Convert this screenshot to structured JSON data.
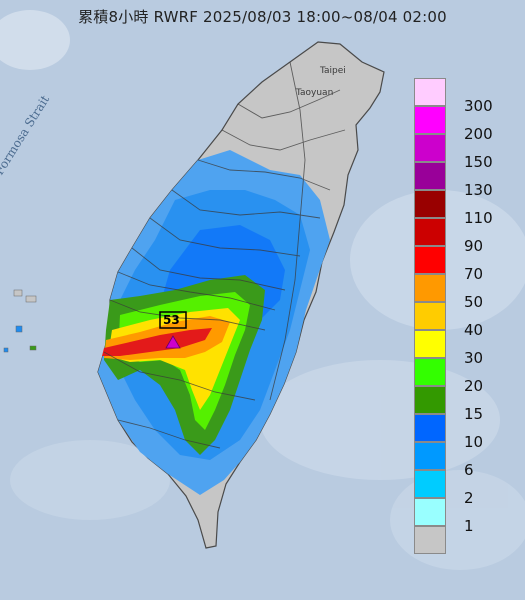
{
  "title": "累積8小時 RWRF 2025/08/03 18:00~08/04 02:00",
  "labels": {
    "strait": "Formosa Strait",
    "cities": [
      "Taipei",
      "Taoyuan"
    ],
    "station_marker": "53"
  },
  "legend": {
    "items": [
      {
        "label": "300",
        "color": "#ffccff"
      },
      {
        "label": "200",
        "color": "#ff00ff"
      },
      {
        "label": "150",
        "color": "#cc00cc"
      },
      {
        "label": "130",
        "color": "#990099"
      },
      {
        "label": "110",
        "color": "#990000"
      },
      {
        "label": "90",
        "color": "#cc0000"
      },
      {
        "label": "70",
        "color": "#ff0000"
      },
      {
        "label": "50",
        "color": "#ff9900"
      },
      {
        "label": "40",
        "color": "#ffcc00"
      },
      {
        "label": "30",
        "color": "#ffff00"
      },
      {
        "label": "20",
        "color": "#33ff00"
      },
      {
        "label": "15",
        "color": "#339900"
      },
      {
        "label": "10",
        "color": "#0066ff"
      },
      {
        "label": "6",
        "color": "#0099ff"
      },
      {
        "label": "2",
        "color": "#00ccff"
      },
      {
        "label": "1",
        "color": "#99ffff"
      },
      {
        "label": "",
        "color": "#c6c6c6"
      }
    ]
  },
  "colors": {
    "sea": "#b9cbe0",
    "land_gray": "#c6c6c6",
    "rain_light": "#4fa3f0",
    "rain_blue": "#1f7fe8",
    "rain_green": "#3a9a1a",
    "rain_lime": "#55f000",
    "rain_yellow": "#ffe200",
    "rain_orange": "#ff9a00",
    "rain_red": "#e31a1a",
    "marker": "#cc00cc"
  }
}
